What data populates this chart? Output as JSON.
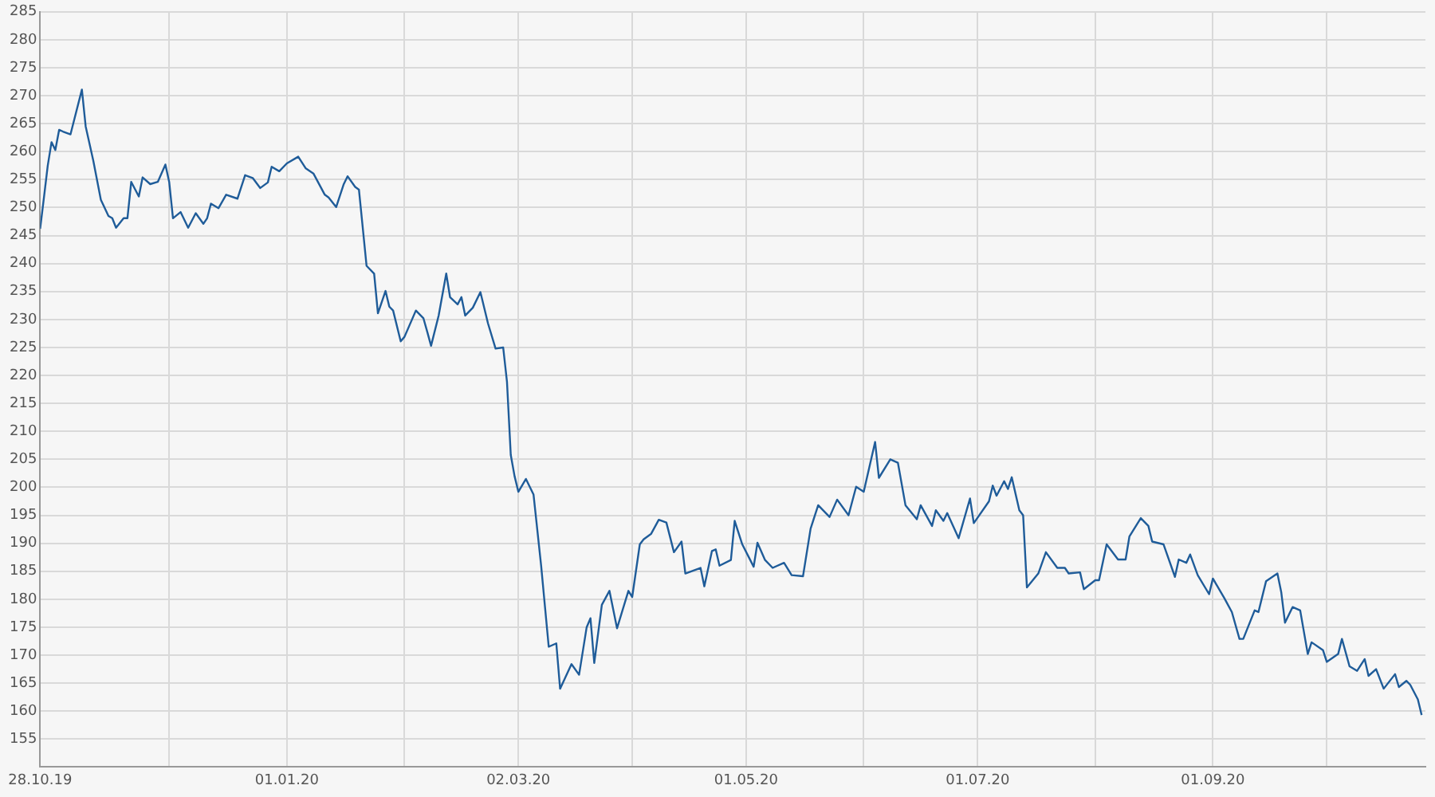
{
  "chart_data": {
    "type": "line",
    "x": [
      "2019-10-28",
      "2019-10-29",
      "2019-10-30",
      "2019-10-31",
      "2019-11-01",
      "2019-11-02",
      "2019-11-03",
      "2019-11-05",
      "2019-11-08",
      "2019-11-09",
      "2019-11-11",
      "2019-11-13",
      "2019-11-15",
      "2019-11-16",
      "2019-11-17",
      "2019-11-19",
      "2019-11-20",
      "2019-11-21",
      "2019-11-23",
      "2019-11-24",
      "2019-11-26",
      "2019-11-28",
      "2019-11-30",
      "2019-12-01",
      "2019-12-02",
      "2019-12-04",
      "2019-12-06",
      "2019-12-08",
      "2019-12-10",
      "2019-12-11",
      "2019-12-12",
      "2019-12-14",
      "2019-12-16",
      "2019-12-19",
      "2019-12-21",
      "2019-12-23",
      "2019-12-25",
      "2019-12-27",
      "2019-12-28",
      "2019-12-30",
      "2020-01-01",
      "2020-01-04",
      "2020-01-06",
      "2020-01-08",
      "2020-01-11",
      "2020-01-12",
      "2020-01-14",
      "2020-01-16",
      "2020-01-17",
      "2020-01-19",
      "2020-01-20",
      "2020-01-22",
      "2020-01-24",
      "2020-01-25",
      "2020-01-27",
      "2020-01-28",
      "2020-01-29",
      "2020-01-31",
      "2020-02-01",
      "2020-02-04",
      "2020-02-06",
      "2020-02-07",
      "2020-02-08",
      "2020-02-10",
      "2020-02-12",
      "2020-02-13",
      "2020-02-15",
      "2020-02-16",
      "2020-02-17",
      "2020-02-19",
      "2020-02-21",
      "2020-02-23",
      "2020-02-25",
      "2020-02-27",
      "2020-02-28",
      "2020-02-29",
      "2020-03-01",
      "2020-03-02",
      "2020-03-04",
      "2020-03-06",
      "2020-03-08",
      "2020-03-10",
      "2020-03-12",
      "2020-03-13",
      "2020-03-16",
      "2020-03-18",
      "2020-03-20",
      "2020-03-21",
      "2020-03-22",
      "2020-03-24",
      "2020-03-26",
      "2020-03-28",
      "2020-03-31",
      "2020-04-01",
      "2020-04-03",
      "2020-04-04",
      "2020-04-06",
      "2020-04-08",
      "2020-04-10",
      "2020-04-12",
      "2020-04-14",
      "2020-04-15",
      "2020-04-19",
      "2020-04-20",
      "2020-04-22",
      "2020-04-23",
      "2020-04-24",
      "2020-04-27",
      "2020-04-28",
      "2020-04-30",
      "2020-05-03",
      "2020-05-04",
      "2020-05-06",
      "2020-05-08",
      "2020-05-11",
      "2020-05-13",
      "2020-05-16",
      "2020-05-18",
      "2020-05-20",
      "2020-05-23",
      "2020-05-25",
      "2020-05-28",
      "2020-05-30",
      "2020-06-01",
      "2020-06-04",
      "2020-06-05",
      "2020-06-08",
      "2020-06-10",
      "2020-06-12",
      "2020-06-15",
      "2020-06-16",
      "2020-06-19",
      "2020-06-20",
      "2020-06-22",
      "2020-06-23",
      "2020-06-26",
      "2020-06-29",
      "2020-06-30",
      "2020-07-04",
      "2020-07-05",
      "2020-07-06",
      "2020-07-08",
      "2020-07-09",
      "2020-07-10",
      "2020-07-12",
      "2020-07-13",
      "2020-07-14",
      "2020-07-17",
      "2020-07-19",
      "2020-07-22",
      "2020-07-24",
      "2020-07-25",
      "2020-07-28",
      "2020-07-29",
      "2020-08-01",
      "2020-08-02",
      "2020-08-04",
      "2020-08-07",
      "2020-08-09",
      "2020-08-10",
      "2020-08-13",
      "2020-08-15",
      "2020-08-16",
      "2020-08-19",
      "2020-08-22",
      "2020-08-23",
      "2020-08-25",
      "2020-08-26",
      "2020-08-28",
      "2020-08-31",
      "2020-09-01",
      "2020-09-04",
      "2020-09-06",
      "2020-09-08",
      "2020-09-09",
      "2020-09-12",
      "2020-09-13",
      "2020-09-15",
      "2020-09-18",
      "2020-09-19",
      "2020-09-20",
      "2020-09-22",
      "2020-09-24",
      "2020-09-26",
      "2020-09-27",
      "2020-09-30",
      "2020-10-01",
      "2020-10-04",
      "2020-10-05",
      "2020-10-07",
      "2020-10-09",
      "2020-10-11",
      "2020-10-12",
      "2020-10-14",
      "2020-10-16",
      "2020-10-19",
      "2020-10-20",
      "2020-10-22",
      "2020-10-23",
      "2020-10-25",
      "2020-10-26"
    ],
    "series": [
      {
        "color": "#1f5c99",
        "values": [
          246.2,
          251.8,
          257.5,
          261.7,
          260.3,
          263.9,
          263.6,
          263.1,
          271.1,
          264.5,
          258.4,
          251.4,
          248.5,
          248.1,
          246.4,
          248.1,
          248.1,
          254.6,
          252.0,
          255.4,
          254.2,
          254.6,
          257.7,
          254.6,
          248.1,
          249.2,
          246.4,
          249.0,
          247.1,
          248.1,
          250.7,
          249.9,
          252.3,
          251.6,
          255.8,
          255.3,
          253.5,
          254.5,
          257.3,
          256.5,
          257.9,
          259.1,
          257.0,
          256.1,
          252.3,
          251.8,
          250.1,
          254.2,
          255.6,
          253.7,
          253.2,
          239.6,
          238.2,
          231.1,
          235.1,
          232.3,
          231.6,
          226.1,
          226.9,
          231.6,
          230.2,
          227.8,
          225.3,
          230.7,
          238.2,
          234.0,
          232.7,
          234.0,
          230.7,
          232.1,
          234.9,
          229.3,
          224.8,
          225.0,
          218.9,
          205.8,
          202.0,
          199.2,
          201.5,
          198.7,
          186.0,
          171.5,
          172.1,
          164.0,
          168.4,
          166.5,
          175.0,
          176.6,
          168.6,
          179.0,
          181.5,
          174.8,
          181.5,
          180.4,
          189.8,
          190.7,
          191.7,
          194.2,
          193.7,
          188.4,
          190.3,
          184.6,
          185.6,
          182.3,
          188.6,
          188.9,
          186.0,
          187.0,
          194.0,
          189.8,
          185.8,
          190.1,
          187.0,
          185.6,
          186.5,
          184.3,
          184.1,
          192.6,
          196.8,
          194.7,
          197.8,
          195.0,
          200.1,
          199.2,
          208.1,
          201.7,
          205.0,
          204.4,
          196.8,
          194.3,
          196.8,
          193.1,
          195.9,
          194.0,
          195.4,
          190.9,
          198.0,
          193.6,
          197.5,
          200.3,
          198.5,
          201.1,
          199.7,
          201.8,
          195.9,
          195.0,
          182.1,
          184.6,
          188.4,
          185.6,
          185.6,
          184.6,
          184.8,
          181.8,
          183.4,
          183.4,
          189.8,
          187.1,
          187.1,
          191.2,
          194.5,
          193.1,
          190.3,
          189.8,
          184.0,
          187.1,
          186.5,
          188.0,
          184.3,
          180.9,
          183.7,
          180.2,
          177.7,
          172.9,
          172.9,
          178.0,
          177.7,
          183.2,
          184.6,
          181.3,
          175.8,
          178.6,
          178.0,
          170.2,
          172.3,
          170.9,
          168.8,
          170.2,
          172.9,
          168.0,
          167.2,
          169.3,
          166.3,
          167.5,
          164.0,
          166.6,
          164.3,
          165.4,
          164.7,
          162.1,
          159.3
        ]
      }
    ],
    "xlim": [
      "2019-10-28",
      "2020-10-27"
    ],
    "xticks": [
      {
        "value": "2019-10-28",
        "label": "28.10.19"
      },
      {
        "value": "2019-12-01",
        "label": null
      },
      {
        "value": "2020-01-01",
        "label": "01.01.20"
      },
      {
        "value": "2020-02-01",
        "label": null
      },
      {
        "value": "2020-03-02",
        "label": "02.03.20"
      },
      {
        "value": "2020-04-01",
        "label": null
      },
      {
        "value": "2020-05-01",
        "label": "01.05.20"
      },
      {
        "value": "2020-06-01",
        "label": null
      },
      {
        "value": "2020-07-01",
        "label": "01.07.20"
      },
      {
        "value": "2020-08-01",
        "label": null
      },
      {
        "value": "2020-09-01",
        "label": "01.09.20"
      },
      {
        "value": "2020-10-01",
        "label": null
      }
    ],
    "ylim": [
      150,
      285
    ],
    "yticks": [
      155,
      160,
      165,
      170,
      175,
      180,
      185,
      190,
      195,
      200,
      205,
      210,
      215,
      220,
      225,
      230,
      235,
      240,
      245,
      250,
      255,
      260,
      265,
      270,
      275,
      280,
      285
    ],
    "grid": true
  }
}
